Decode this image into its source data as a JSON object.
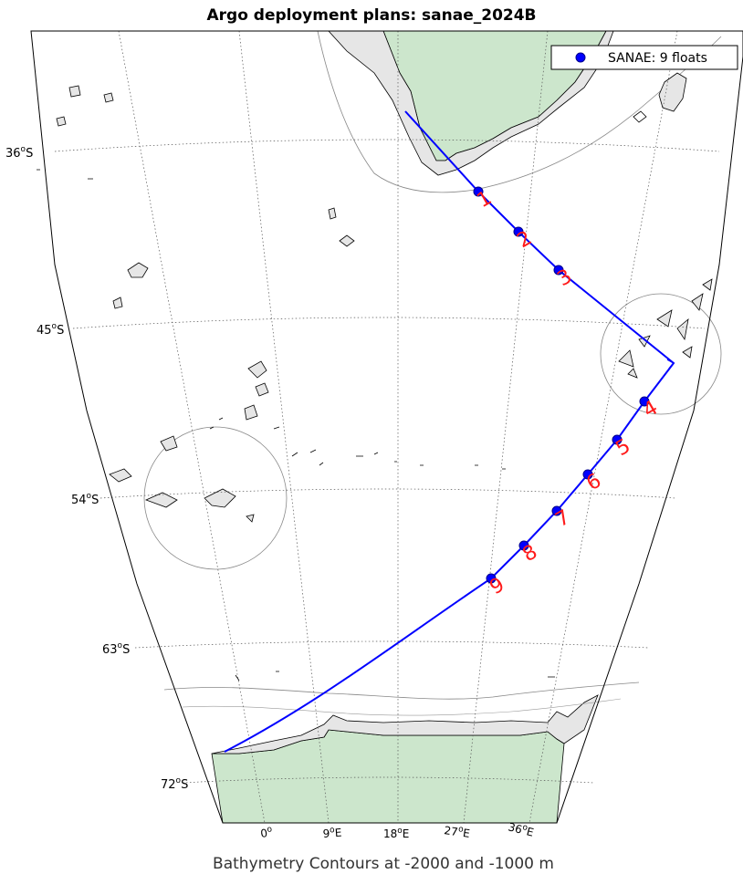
{
  "title": "Argo deployment plans: sanae_2024B",
  "footer": "Bathymetry Contours at -2000 and -1000 m",
  "legend": {
    "label": "SANAE:  9 floats",
    "marker_color": "#0000ff"
  },
  "latitude_labels": [
    {
      "deg": "36",
      "hem": "S"
    },
    {
      "deg": "45",
      "hem": "S"
    },
    {
      "deg": "54",
      "hem": "S"
    },
    {
      "deg": "63",
      "hem": "S"
    },
    {
      "deg": "72",
      "hem": "S"
    }
  ],
  "longitude_labels": [
    {
      "deg": "0",
      "hem": ""
    },
    {
      "deg": "9",
      "hem": "E"
    },
    {
      "deg": "18",
      "hem": "E"
    },
    {
      "deg": "27",
      "hem": "E"
    },
    {
      "deg": "36",
      "hem": "E"
    }
  ],
  "floats": [
    {
      "label": "1"
    },
    {
      "label": "2"
    },
    {
      "label": "3"
    },
    {
      "label": "4"
    },
    {
      "label": "5"
    },
    {
      "label": "6"
    },
    {
      "label": "7"
    },
    {
      "label": "8"
    },
    {
      "label": "9"
    }
  ],
  "colors": {
    "land": "#cce6cc",
    "shelf": "#e6e6e6",
    "track": "#0000ff",
    "labels": "#ff1a1a",
    "grid": "#555555"
  }
}
